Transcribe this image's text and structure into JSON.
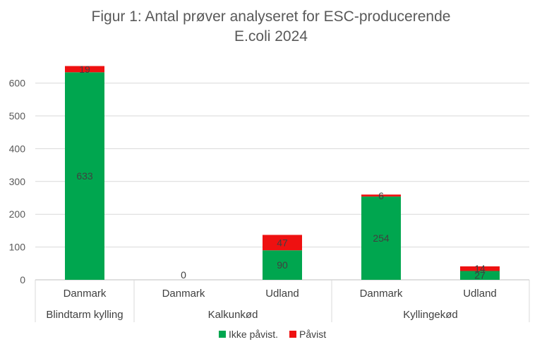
{
  "chart_data": {
    "type": "bar",
    "stacked": true,
    "title_line1": "Figur 1: Antal prøver analyseret for ESC-producerende",
    "title_line2": "E.coli 2024",
    "xlabel": "",
    "ylabel": "",
    "ylim": [
      0,
      700
    ],
    "yticks": [
      0,
      100,
      200,
      300,
      400,
      500,
      600
    ],
    "grid": true,
    "legend_position": "bottom",
    "groups": [
      {
        "label": "Blindtarm kylling",
        "categories": [
          "Danmark"
        ]
      },
      {
        "label": "Kalkunkød",
        "categories": [
          "Danmark",
          "Udland"
        ]
      },
      {
        "label": "Kyllingekød",
        "categories": [
          "Danmark",
          "Udland"
        ]
      }
    ],
    "categories": [
      "Danmark",
      "Danmark",
      "Udland",
      "Danmark",
      "Udland"
    ],
    "series": [
      {
        "name": "Ikke påvist.",
        "color": "#00a64f",
        "values": [
          633,
          0,
          90,
          254,
          27
        ]
      },
      {
        "name": "Påvist",
        "color": "#ee1111",
        "values": [
          19,
          0,
          47,
          6,
          14
        ]
      }
    ],
    "data_labels": {
      "Ikke påvist.": [
        "633",
        "0",
        "90",
        "254",
        "27"
      ],
      "Påvist": [
        "19",
        "",
        "47",
        "6",
        "14"
      ]
    }
  }
}
